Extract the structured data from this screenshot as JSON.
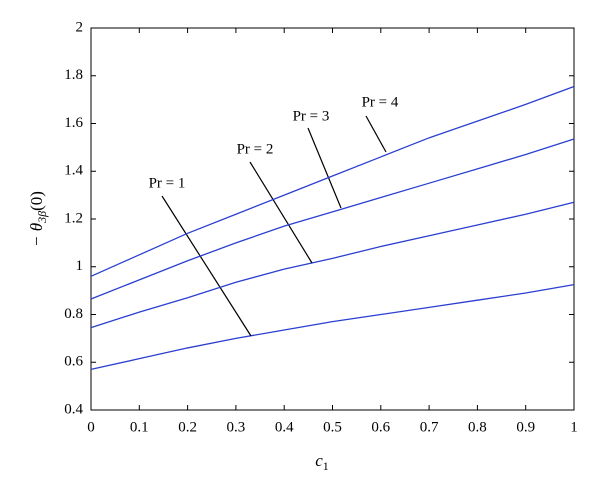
{
  "chart_data": {
    "type": "line",
    "x_label": {
      "main": "c",
      "sub": "1"
    },
    "y_label": {
      "main": "− θ",
      "sub": "3β",
      "tail": "(0)"
    },
    "x": [
      0,
      0.1,
      0.2,
      0.3,
      0.4,
      0.5,
      0.6,
      0.7,
      0.8,
      0.9,
      1
    ],
    "series": [
      {
        "name": "Pr = 1",
        "color": "#2b3fd1",
        "values": [
          0.57,
          0.615,
          0.66,
          0.7,
          0.735,
          0.77,
          0.8,
          0.83,
          0.86,
          0.89,
          0.925
        ]
      },
      {
        "name": "Pr = 2",
        "color": "#2b3fd1",
        "values": [
          0.745,
          0.81,
          0.87,
          0.935,
          0.99,
          1.035,
          1.085,
          1.13,
          1.175,
          1.22,
          1.27
        ]
      },
      {
        "name": "Pr = 3",
        "color": "#2b3fd1",
        "values": [
          0.865,
          0.945,
          1.025,
          1.1,
          1.17,
          1.23,
          1.29,
          1.35,
          1.41,
          1.47,
          1.535
        ]
      },
      {
        "name": "Pr = 4",
        "color": "#2b3fd1",
        "values": [
          0.96,
          1.05,
          1.14,
          1.22,
          1.3,
          1.38,
          1.46,
          1.54,
          1.61,
          1.68,
          1.755
        ]
      }
    ],
    "xlim": [
      0,
      1
    ],
    "xticks": [
      0,
      0.1,
      0.2,
      0.3,
      0.4,
      0.5,
      0.6,
      0.7,
      0.8,
      0.9,
      1
    ],
    "ylim": [
      0.4,
      2
    ],
    "yticks": [
      0.4,
      0.6,
      0.8,
      1,
      1.2,
      1.4,
      1.6,
      1.8,
      2
    ],
    "grid": false
  }
}
